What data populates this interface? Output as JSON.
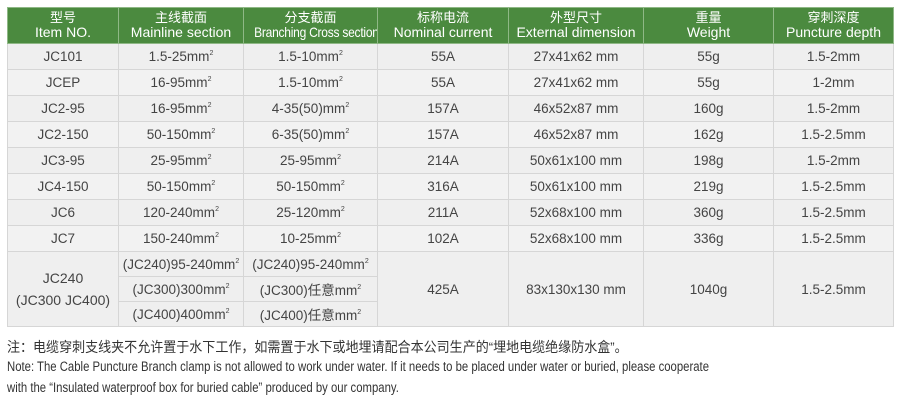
{
  "headers": [
    {
      "cn": "型号",
      "en": "Item NO."
    },
    {
      "cn": "主线截面",
      "en": "Mainline section"
    },
    {
      "cn": "分支截面",
      "en": "Branching Cross section"
    },
    {
      "cn": "标称电流",
      "en": "Nominal current"
    },
    {
      "cn": "外型尺寸",
      "en": "External dimension"
    },
    {
      "cn": "重量",
      "en": "Weight"
    },
    {
      "cn": "穿刺深度",
      "en": "Puncture depth"
    }
  ],
  "rows": [
    [
      "JC101",
      "1.5-25mm²",
      "1.5-10mm²",
      "55A",
      "27x41x62 mm",
      "55g",
      "1.5-2mm"
    ],
    [
      "JCEP",
      "16-95mm²",
      "1.5-10mm²",
      "55A",
      "27x41x62 mm",
      "55g",
      "1-2mm"
    ],
    [
      "JC2-95",
      "16-95mm²",
      "4-35(50)mm²",
      "157A",
      "46x52x87 mm",
      "160g",
      "1.5-2mm"
    ],
    [
      "JC2-150",
      "50-150mm²",
      "6-35(50)mm²",
      "157A",
      "46x52x87 mm",
      "162g",
      "1.5-2.5mm"
    ],
    [
      "JC3-95",
      "25-95mm²",
      "25-95mm²",
      "214A",
      "50x61x100 mm",
      "198g",
      "1.5-2mm"
    ],
    [
      "JC4-150",
      "50-150mm²",
      "50-150mm²",
      "316A",
      "50x61x100 mm",
      "219g",
      "1.5-2.5mm"
    ],
    [
      "JC6",
      "120-240mm²",
      "25-120mm²",
      "211A",
      "52x68x100 mm",
      "360g",
      "1.5-2.5mm"
    ],
    [
      "JC7",
      "150-240mm²",
      "10-25mm²",
      "102A",
      "52x68x100 mm",
      "336g",
      "1.5-2.5mm"
    ]
  ],
  "group": {
    "item_line1": "JC240",
    "item_line2": "(JC300 JC400)",
    "mainline": [
      "(JC240)95-240mm²",
      "(JC300)300mm²",
      "(JC400)400mm²"
    ],
    "branching": [
      "(JC240)95-240mm²",
      "(JC300)任意mm²",
      "(JC400)任意mm²"
    ],
    "current": "425A",
    "dimension": "83x130x130 mm",
    "weight": "1040g",
    "depth": "1.5-2.5mm"
  },
  "notes": {
    "cn": "注：电缆穿刺支线夹不允许置于水下工作，如需置于水下或地埋请配合本公司生产的“埋地电缆绝缘防水盒”。",
    "en_line1": "Note: The Cable Puncture Branch clamp is not allowed to work under water. If it needs to be placed under water or buried, please cooperate",
    "en_line2": "with the  “Insulated waterproof box for buried cable”  produced by our company."
  },
  "colors": {
    "header_bg": "#4b8a3f",
    "row_bg": "#efefef"
  }
}
